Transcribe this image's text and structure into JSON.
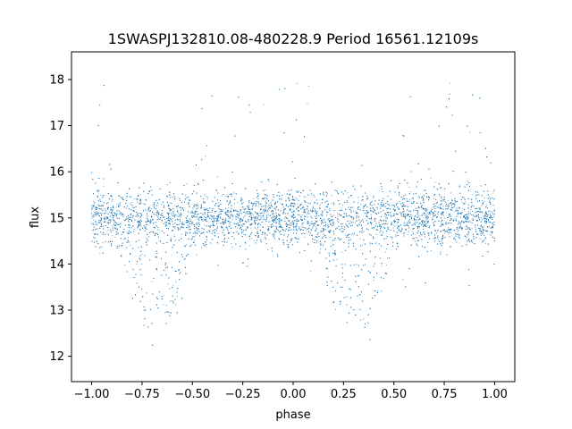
{
  "chart_data": {
    "type": "scatter",
    "title": "1SWASPJ132810.08-480228.9 Period 16561.12109s",
    "xlabel": "phase",
    "ylabel": "flux",
    "xlim": [
      -1.1,
      1.1
    ],
    "ylim": [
      11.45,
      18.6
    ],
    "xticks": [
      -1.0,
      -0.75,
      -0.5,
      -0.25,
      0.0,
      0.25,
      0.5,
      0.75,
      1.0
    ],
    "xtick_labels": [
      "−1.00",
      "−0.75",
      "−0.50",
      "−0.25",
      "0.00",
      "0.25",
      "0.50",
      "0.75",
      "1.00"
    ],
    "yticks": [
      12,
      13,
      14,
      15,
      16,
      17,
      18
    ],
    "ytick_labels": [
      "12",
      "13",
      "14",
      "15",
      "16",
      "17",
      "18"
    ],
    "grid": false,
    "legend": "none",
    "point_color": "#1f77b4",
    "series": [
      {
        "phase_range": [
          -1.0,
          1.0
        ],
        "baseline_flux": 15.0,
        "baseline_scatter": 0.3,
        "dip_centers": [
          -0.68,
          0.32
        ],
        "dip_min_flux": 12.8,
        "dip_half_width": 0.22,
        "flux_range": [
          11.7,
          18.2
        ]
      }
    ]
  }
}
